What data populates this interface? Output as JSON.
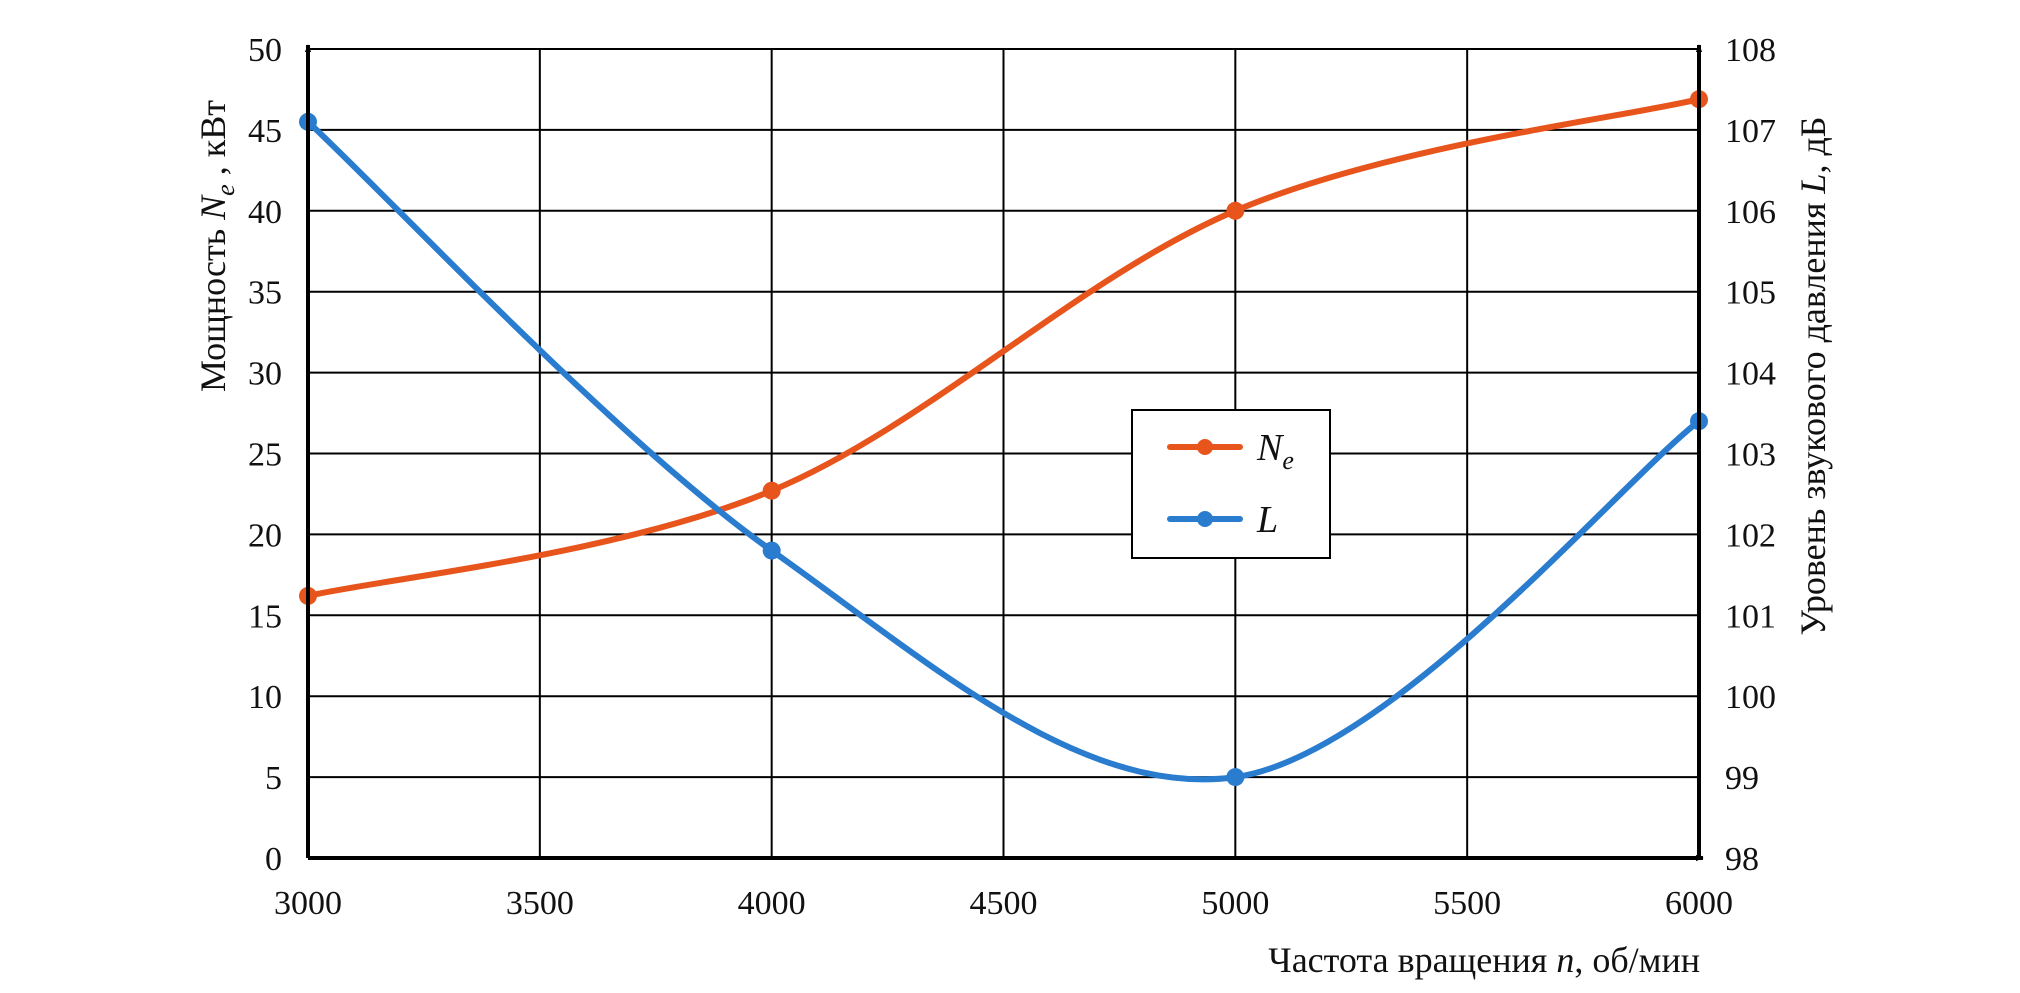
{
  "chart_data": {
    "type": "line",
    "x_ticks": [
      3000,
      3500,
      4000,
      4500,
      5000,
      5500,
      6000
    ],
    "y_left_ticks": [
      0,
      5,
      10,
      15,
      20,
      25,
      30,
      35,
      40,
      45,
      50
    ],
    "y_right_ticks": [
      98,
      99,
      100,
      101,
      102,
      103,
      104,
      105,
      106,
      107,
      108
    ],
    "xlim": [
      3000,
      6000
    ],
    "ylim_left": [
      0,
      50
    ],
    "ylim_right": [
      98,
      108
    ],
    "grid": true,
    "legend_position": "center",
    "xlabel": {
      "prefix": "Частота вращения ",
      "var": "n",
      "suffix": ", об/мин"
    },
    "ylabel_left": {
      "prefix": "Мощность ",
      "var": "N",
      "sub": "e",
      "suffix": " , кВт"
    },
    "ylabel_right": {
      "prefix": "Уровень звукового давления ",
      "var": "L",
      "suffix": ", дБ"
    },
    "series": [
      {
        "name": "N",
        "name_sub": "e",
        "axis": "left",
        "color": "#e8551c",
        "x": [
          3000,
          4000,
          5000,
          6000
        ],
        "values": [
          16.2,
          22.7,
          40.0,
          46.9
        ]
      },
      {
        "name": "L",
        "name_sub": "",
        "axis": "right",
        "color": "#2a7ccf",
        "x": [
          3000,
          4000,
          5000,
          6000
        ],
        "values": [
          107.1,
          101.8,
          99.0,
          103.4
        ]
      }
    ]
  }
}
